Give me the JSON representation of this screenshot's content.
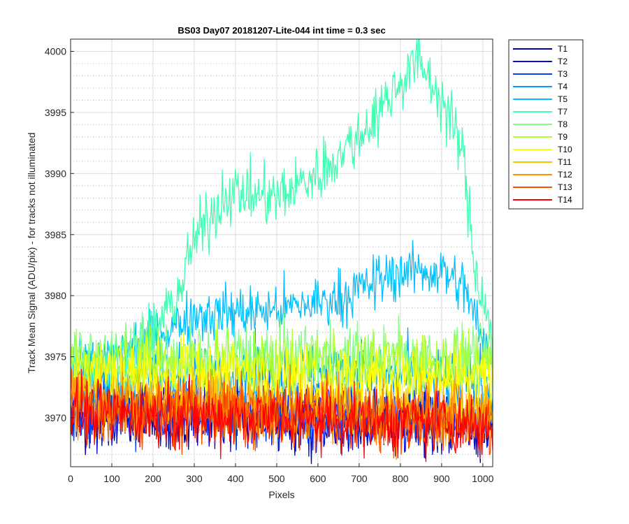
{
  "chart_data": {
    "type": "line",
    "title": "BS03 Day07 20181207-Lite-044 int time = 0.3 sec",
    "xlabel": "Pixels",
    "ylabel": "Track Mean Signal (ADU/pix) - for tracks not illuminated",
    "xlim": [
      0,
      1024
    ],
    "ylim": [
      3966,
      4001
    ],
    "xticks": [
      0,
      100,
      200,
      300,
      400,
      500,
      600,
      700,
      800,
      900,
      1000
    ],
    "yticks": [
      3970,
      3975,
      3980,
      3985,
      3990,
      3995,
      4000
    ],
    "grid": "major solid, minor dotted",
    "legend_position": "outside-right-top",
    "series": [
      {
        "name": "T1",
        "color": "#0000b0",
        "noise": 2.4,
        "trend": [
          [
            0,
            3970.5
          ],
          [
            1024,
            3969.5
          ]
        ]
      },
      {
        "name": "T2",
        "color": "#0010d0",
        "noise": 2.4,
        "trend": [
          [
            0,
            3970.6
          ],
          [
            1024,
            3969.6
          ]
        ]
      },
      {
        "name": "T3",
        "color": "#0040ff",
        "noise": 2.4,
        "trend": [
          [
            0,
            3971
          ],
          [
            1024,
            3970
          ]
        ]
      },
      {
        "name": "T4",
        "color": "#00a0ff",
        "noise": 2.4,
        "trend": [
          [
            0,
            3973.2
          ],
          [
            300,
            3973.5
          ],
          [
            500,
            3973.5
          ],
          [
            700,
            3973.8
          ],
          [
            1024,
            3972.5
          ]
        ]
      },
      {
        "name": "T5",
        "color": "#00c0ff",
        "noise": 2.0,
        "trend": [
          [
            0,
            3974
          ],
          [
            150,
            3975.5
          ],
          [
            250,
            3977.5
          ],
          [
            300,
            3978.5
          ],
          [
            500,
            3978.8
          ],
          [
            650,
            3979.8
          ],
          [
            800,
            3982
          ],
          [
            900,
            3982
          ],
          [
            960,
            3980.5
          ],
          [
            1000,
            3976
          ],
          [
            1024,
            3975
          ]
        ]
      },
      {
        "name": "T7",
        "color": "#40ffb0",
        "noise": 2.2,
        "trend": [
          [
            0,
            3973.5
          ],
          [
            100,
            3974.5
          ],
          [
            200,
            3977
          ],
          [
            260,
            3980
          ],
          [
            300,
            3984.5
          ],
          [
            380,
            3988.5
          ],
          [
            500,
            3988
          ],
          [
            600,
            3990
          ],
          [
            700,
            3993
          ],
          [
            800,
            3997.5
          ],
          [
            840,
            3999.5
          ],
          [
            900,
            3996
          ],
          [
            950,
            3992
          ],
          [
            980,
            3982.5
          ],
          [
            1024,
            3976.5
          ]
        ]
      },
      {
        "name": "T8",
        "color": "#80ff80",
        "noise": 2.4,
        "trend": [
          [
            0,
            3975
          ],
          [
            1024,
            3975
          ]
        ]
      },
      {
        "name": "T9",
        "color": "#b0ff30",
        "noise": 2.4,
        "trend": [
          [
            0,
            3974.5
          ],
          [
            1024,
            3974.5
          ]
        ]
      },
      {
        "name": "T10",
        "color": "#ffff00",
        "noise": 2.4,
        "trend": [
          [
            0,
            3973.8
          ],
          [
            1024,
            3973
          ]
        ]
      },
      {
        "name": "T11",
        "color": "#ffc000",
        "noise": 2.4,
        "trend": [
          [
            0,
            3971.5
          ],
          [
            1024,
            3970.5
          ]
        ]
      },
      {
        "name": "T12",
        "color": "#ff9000",
        "noise": 2.4,
        "trend": [
          [
            0,
            3971.2
          ],
          [
            1024,
            3970
          ]
        ]
      },
      {
        "name": "T13",
        "color": "#ff5000",
        "noise": 2.4,
        "trend": [
          [
            0,
            3970.8
          ],
          [
            1024,
            3969.6
          ]
        ]
      },
      {
        "name": "T14",
        "color": "#ff0000",
        "noise": 2.3,
        "trend": [
          [
            0,
            3970.5
          ],
          [
            1024,
            3969.4
          ]
        ]
      }
    ]
  }
}
